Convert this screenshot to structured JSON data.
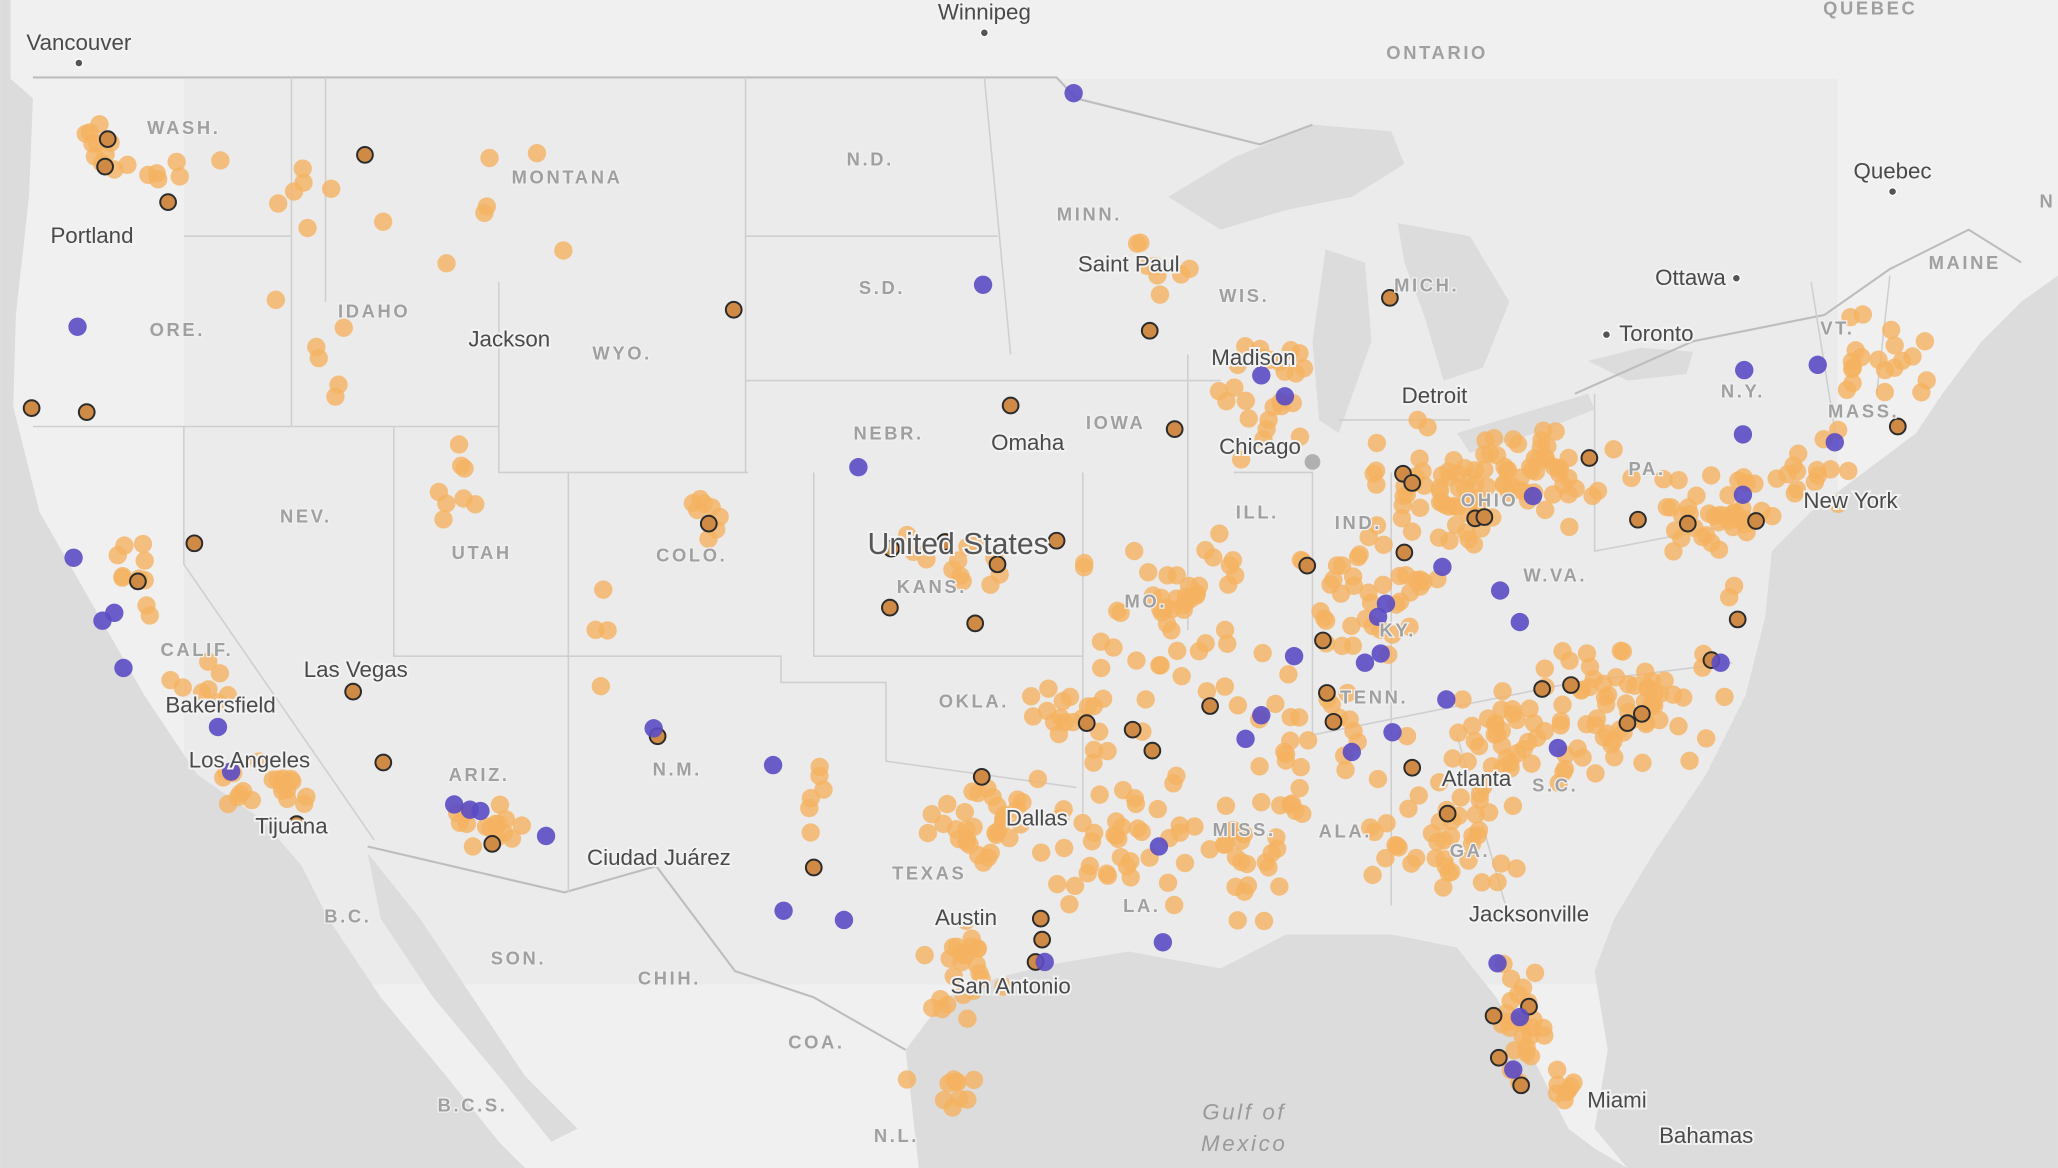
{
  "map": {
    "places": [
      "Vancouver",
      "Winnipeg",
      "Quebec",
      "Ottawa",
      "Toronto",
      "New York",
      "Portland",
      "Saint Paul",
      "Jackson",
      "Madison",
      "Detroit",
      "Omaha",
      "Chicago",
      "United States",
      "Las Vegas",
      "Bakersfield",
      "Los Angeles",
      "Atlanta",
      "Dallas",
      "Tijuana",
      "Ciudad Juárez",
      "Austin",
      "Jacksonville",
      "San Antonio",
      "Miami",
      "Bahamas"
    ],
    "regions": [
      "ONTARIO",
      "QUEBEC",
      "MAINE",
      "VT.",
      "N.Y.",
      "MASS.",
      "PA.",
      "WASH.",
      "MONTANA",
      "N.D.",
      "MINN.",
      "WIS.",
      "MICH.",
      "IDAHO",
      "ORE.",
      "S.D.",
      "WYO.",
      "NEBR.",
      "IOWA",
      "OHIO",
      "NEV.",
      "UTAH",
      "COLO.",
      "KANS.",
      "ILL.",
      "IND.",
      "W.VA.",
      "MO.",
      "KY.",
      "CALIF.",
      "OKLA.",
      "TENN.",
      "N.M.",
      "ARIZ.",
      "S.C.",
      "MISS.",
      "ALA.",
      "TEXAS",
      "GA.",
      "LA.",
      "B.C.",
      "SON.",
      "CHIH.",
      "COA.",
      "B.C.S.",
      "N.L.",
      "N"
    ],
    "water": [
      "Gulf of",
      "Mexico"
    ]
  }
}
